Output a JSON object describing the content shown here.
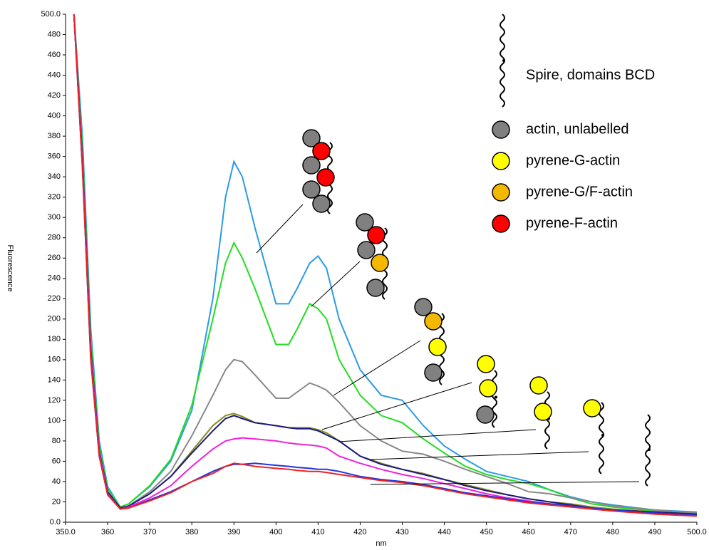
{
  "chart_data": {
    "type": "line",
    "x_label": "nm",
    "y_label": "Fluorescence",
    "xlim": [
      350,
      500
    ],
    "ylim": [
      0,
      500
    ],
    "xticks": [
      {
        "value": 350,
        "label": "350.0"
      },
      360,
      370,
      380,
      390,
      400,
      410,
      420,
      430,
      440,
      450,
      460,
      470,
      480,
      490,
      {
        "value": 500,
        "label": "500.0"
      }
    ],
    "yticks": [
      {
        "value": 0,
        "label": "0.0"
      },
      20,
      40,
      60,
      80,
      100,
      120,
      140,
      160,
      180,
      200,
      220,
      240,
      260,
      280,
      300,
      320,
      340,
      360,
      380,
      400,
      420,
      440,
      460,
      480,
      {
        "value": 500,
        "label": "500.0"
      }
    ],
    "x": [
      352,
      354,
      356,
      358,
      360,
      363,
      365,
      370,
      375,
      380,
      385,
      388,
      390,
      392,
      395,
      400,
      403,
      405,
      408,
      410,
      412,
      415,
      420,
      425,
      430,
      435,
      440,
      445,
      450,
      455,
      460,
      465,
      470,
      475,
      480,
      490,
      500
    ],
    "series": [
      {
        "color": "#2b9be6",
        "values": [
          500,
          380,
          190,
          80,
          35,
          15,
          18,
          35,
          60,
          110,
          220,
          320,
          355,
          340,
          290,
          215,
          215,
          230,
          255,
          262,
          250,
          200,
          150,
          125,
          120,
          95,
          75,
          62,
          50,
          45,
          40,
          32,
          25,
          20,
          17,
          12,
          10
        ]
      },
      {
        "color": "#22dd22",
        "values": [
          500,
          370,
          180,
          75,
          33,
          15,
          18,
          36,
          62,
          115,
          200,
          255,
          275,
          260,
          230,
          175,
          175,
          190,
          215,
          210,
          200,
          160,
          125,
          105,
          98,
          82,
          68,
          55,
          47,
          42,
          38,
          32,
          24,
          18,
          15,
          11,
          9
        ]
      },
      {
        "color": "#888888",
        "values": [
          500,
          360,
          170,
          70,
          30,
          14,
          16,
          30,
          50,
          85,
          125,
          150,
          160,
          158,
          145,
          122,
          122,
          128,
          137,
          134,
          130,
          118,
          95,
          80,
          70,
          67,
          60,
          52,
          45,
          38,
          30,
          28,
          24,
          20,
          16,
          12,
          9
        ]
      },
      {
        "color": "#8a8a20",
        "values": [
          500,
          360,
          170,
          70,
          30,
          14,
          16,
          28,
          45,
          70,
          95,
          105,
          107,
          104,
          98,
          95,
          93,
          93,
          93,
          91,
          88,
          80,
          65,
          58,
          52,
          48,
          42,
          37,
          32,
          27,
          23,
          20,
          18,
          15,
          13,
          10,
          8
        ]
      },
      {
        "color": "#1a1a80",
        "values": [
          500,
          360,
          170,
          70,
          30,
          14,
          16,
          28,
          45,
          68,
          90,
          102,
          105,
          102,
          98,
          95,
          93,
          92,
          92,
          90,
          86,
          80,
          65,
          57,
          52,
          47,
          42,
          36,
          31,
          27,
          23,
          20,
          17,
          14,
          12,
          10,
          8
        ]
      },
      {
        "color": "#ee22dd",
        "values": [
          500,
          355,
          165,
          68,
          28,
          13,
          15,
          24,
          36,
          55,
          72,
          80,
          82,
          83,
          82,
          80,
          78,
          77,
          76,
          75,
          73,
          65,
          58,
          52,
          47,
          43,
          38,
          33,
          28,
          24,
          21,
          18,
          16,
          14,
          12,
          9,
          7
        ]
      },
      {
        "color": "#2233dd",
        "values": [
          500,
          350,
          160,
          65,
          27,
          13,
          14,
          22,
          30,
          40,
          50,
          55,
          57,
          57,
          58,
          56,
          55,
          54,
          53,
          52,
          52,
          50,
          45,
          42,
          40,
          37,
          33,
          29,
          26,
          23,
          20,
          18,
          16,
          14,
          12,
          9,
          7
        ]
      },
      {
        "color": "#ee2222",
        "values": [
          500,
          350,
          160,
          65,
          27,
          13,
          14,
          21,
          29,
          40,
          48,
          55,
          58,
          57,
          55,
          53,
          52,
          51,
          50,
          50,
          49,
          47,
          44,
          41,
          39,
          36,
          32,
          28,
          25,
          22,
          19,
          17,
          15,
          13,
          11,
          8,
          6
        ]
      }
    ],
    "legend_items": [
      {
        "label": "Spire, domains BCD"
      },
      {
        "label": "actin, unlabelled",
        "color": "#808080"
      },
      {
        "label": "pyrene-G-actin",
        "color": "#ffff00"
      },
      {
        "label": "pyrene-G/F-actin",
        "color": "#f5b800"
      },
      {
        "label": "pyrene-F-actin",
        "color": "#ff0000"
      }
    ]
  }
}
